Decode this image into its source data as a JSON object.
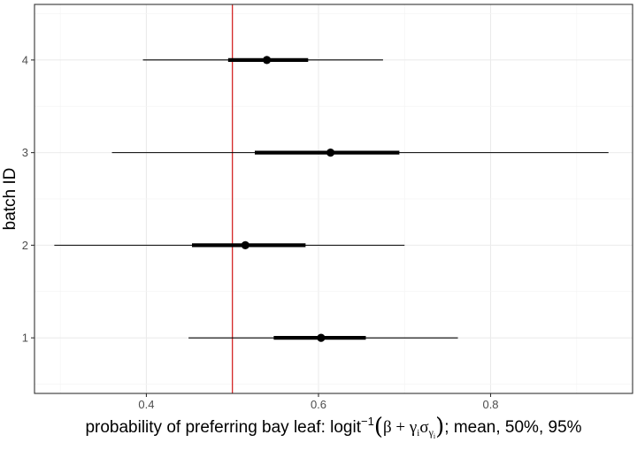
{
  "chart_data": {
    "type": "forest",
    "xlabel": {
      "prefix": "probability of preferring bay leaf: logit",
      "superscript": "−1",
      "formula": "β + γ",
      "sub_i": "i",
      "sigma": "σ",
      "sigma_sub": "γ",
      "suffix": "; mean, 50%, 95%"
    },
    "ylabel": "batch ID",
    "xlim": [
      0.27,
      0.965
    ],
    "ylim": [
      0.4,
      4.6
    ],
    "x_ticks": [
      {
        "value": 0.4,
        "label": "0.4"
      },
      {
        "value": 0.6,
        "label": "0.6"
      },
      {
        "value": 0.8,
        "label": "0.8"
      }
    ],
    "x_minor": [
      0.3,
      0.5,
      0.7,
      0.9
    ],
    "reference_line": {
      "x": 0.5,
      "color": "#cc0000"
    },
    "grid": true,
    "estimates": [
      {
        "label": "1",
        "mean": 0.603,
        "q25": 0.548,
        "q75": 0.655,
        "q2_5": 0.449,
        "q97_5": 0.762
      },
      {
        "label": "2",
        "mean": 0.515,
        "q25": 0.453,
        "q75": 0.585,
        "q2_5": 0.293,
        "q97_5": 0.7
      },
      {
        "label": "3",
        "mean": 0.614,
        "q25": 0.526,
        "q75": 0.694,
        "q2_5": 0.36,
        "q97_5": 0.937
      },
      {
        "label": "4",
        "mean": 0.54,
        "q25": 0.495,
        "q75": 0.588,
        "q2_5": 0.396,
        "q97_5": 0.675
      }
    ],
    "colors": {
      "point": "#000000",
      "panel_border": "#333333",
      "grid": "#ebebeb"
    }
  }
}
